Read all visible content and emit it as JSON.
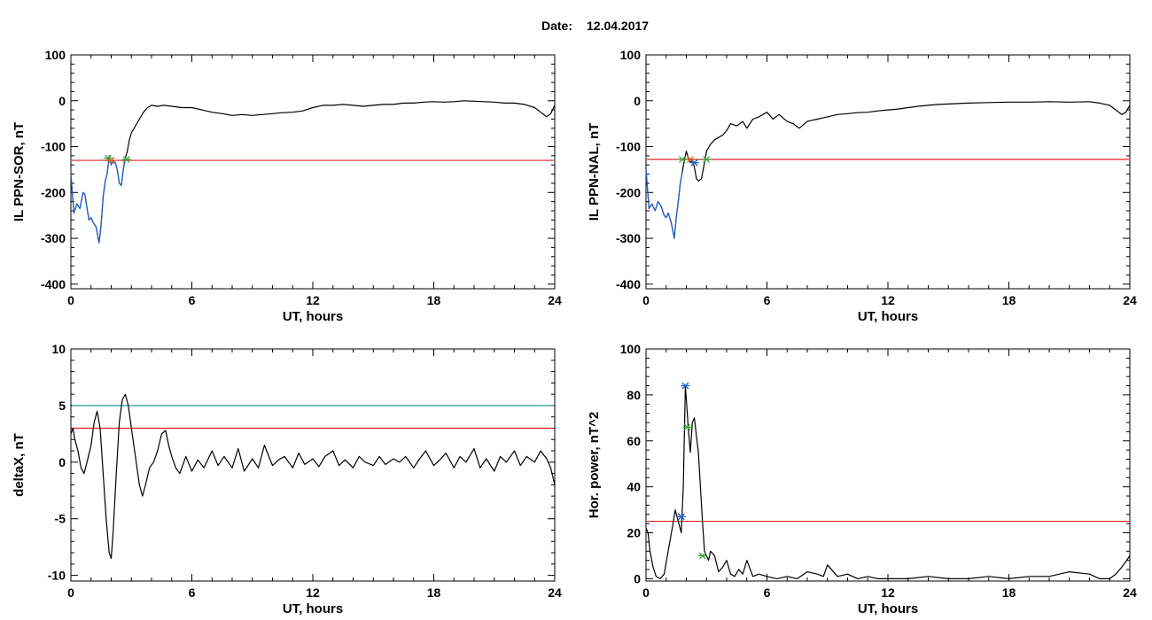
{
  "figure": {
    "date_label": "Date:",
    "date_value": "12.04.2017"
  },
  "chart_data": [
    {
      "id": "sor",
      "type": "line",
      "xlabel": "UT, hours",
      "ylabel": "IL PPN-SOR, nT",
      "xlim": [
        0,
        24
      ],
      "ylim": [
        -410,
        100
      ],
      "xticks": [
        0,
        6,
        12,
        18,
        24
      ],
      "yticks": [
        -400,
        -300,
        -200,
        -100,
        0,
        100
      ],
      "series": [
        {
          "color": "#000000",
          "x": [
            0,
            0.15,
            0.3,
            0.45,
            0.6,
            0.7,
            0.8,
            0.9,
            1.0,
            1.1,
            1.25,
            1.4,
            1.5,
            1.6,
            1.7,
            1.8,
            1.9,
            2.0,
            2.1,
            2.2,
            2.3,
            2.4,
            2.5,
            2.6,
            2.7,
            2.8,
            2.9,
            3.0,
            3.2,
            3.4,
            3.6,
            3.8,
            4.0,
            4.3,
            4.6,
            5.0,
            5.5,
            6.0,
            6.5,
            7.0,
            7.5,
            8.0,
            8.5,
            9.0,
            9.5,
            10.0,
            10.5,
            11.0,
            11.5,
            12.0,
            12.5,
            13.0,
            13.5,
            14.0,
            14.5,
            15.0,
            15.5,
            16.0,
            16.5,
            17.0,
            17.5,
            18.0,
            18.5,
            19.0,
            19.5,
            20.0,
            20.5,
            21.0,
            21.5,
            22.0,
            22.5,
            23.0,
            23.3,
            23.6,
            23.8,
            24.0
          ],
          "y": [
            -160,
            -245,
            -225,
            -235,
            -200,
            -205,
            -235,
            -260,
            -255,
            -265,
            -275,
            -310,
            -270,
            -210,
            -175,
            -160,
            -120,
            -140,
            -130,
            -135,
            -150,
            -180,
            -185,
            -150,
            -125,
            -110,
            -85,
            -70,
            -55,
            -40,
            -25,
            -15,
            -10,
            -12,
            -10,
            -12,
            -15,
            -15,
            -20,
            -25,
            -28,
            -32,
            -30,
            -32,
            -30,
            -28,
            -26,
            -25,
            -22,
            -15,
            -10,
            -10,
            -8,
            -10,
            -12,
            -10,
            -8,
            -8,
            -5,
            -5,
            -3,
            -2,
            -3,
            -2,
            0,
            -1,
            -2,
            -3,
            -5,
            -5,
            -8,
            -15,
            -25,
            -35,
            -28,
            -10
          ]
        },
        {
          "color": "#1f5fcf",
          "x": [
            0,
            0.15,
            0.3,
            0.45,
            0.6,
            0.7,
            0.8,
            0.9,
            1.0,
            1.1,
            1.25,
            1.4,
            1.5,
            1.6,
            1.7,
            1.8,
            1.9,
            2.0,
            2.1,
            2.2,
            2.3,
            2.4,
            2.5,
            2.6,
            2.7
          ],
          "y": [
            -160,
            -245,
            -225,
            -235,
            -200,
            -205,
            -235,
            -260,
            -255,
            -265,
            -275,
            -310,
            -270,
            -210,
            -175,
            -160,
            -120,
            -140,
            -130,
            -135,
            -150,
            -180,
            -185,
            -150,
            -125
          ]
        }
      ],
      "hlines": [
        {
          "y": -130,
          "color": "#e02020"
        }
      ],
      "markers": [
        {
          "x": 1.85,
          "y": -125,
          "color": "#3aa83a"
        },
        {
          "x": 2.0,
          "y": -130,
          "color": "#e05a1a"
        },
        {
          "x": 2.75,
          "y": -128,
          "color": "#3aa83a"
        }
      ]
    },
    {
      "id": "nal",
      "type": "line",
      "xlabel": "UT, hours",
      "ylabel": "IL PPN-NAL, nT",
      "xlim": [
        0,
        24
      ],
      "ylim": [
        -410,
        100
      ],
      "xticks": [
        0,
        6,
        12,
        18,
        24
      ],
      "yticks": [
        -400,
        -300,
        -200,
        -100,
        0,
        100
      ],
      "series": [
        {
          "color": "#000000",
          "x": [
            0,
            0.15,
            0.3,
            0.45,
            0.6,
            0.75,
            0.9,
            1.0,
            1.1,
            1.25,
            1.4,
            1.5,
            1.6,
            1.7,
            1.8,
            1.9,
            2.0,
            2.1,
            2.2,
            2.3,
            2.4,
            2.5,
            2.6,
            2.75,
            2.9,
            3.0,
            3.2,
            3.4,
            3.6,
            3.8,
            4.0,
            4.2,
            4.5,
            4.8,
            5.0,
            5.3,
            5.6,
            6.0,
            6.3,
            6.6,
            7.0,
            7.3,
            7.6,
            8.0,
            8.5,
            9.0,
            9.5,
            10.0,
            10.5,
            11.0,
            11.5,
            12.0,
            12.5,
            13.0,
            13.5,
            14.0,
            14.5,
            15.0,
            16.0,
            17.0,
            18.0,
            19.0,
            20.0,
            21.0,
            22.0,
            22.5,
            23.0,
            23.3,
            23.6,
            23.8,
            24.0
          ],
          "y": [
            -150,
            -235,
            -225,
            -240,
            -220,
            -230,
            -250,
            -255,
            -245,
            -265,
            -300,
            -255,
            -220,
            -180,
            -155,
            -130,
            -110,
            -125,
            -135,
            -130,
            -145,
            -170,
            -175,
            -170,
            -135,
            -110,
            -95,
            -85,
            -80,
            -75,
            -65,
            -50,
            -55,
            -45,
            -60,
            -40,
            -35,
            -25,
            -40,
            -30,
            -45,
            -50,
            -60,
            -45,
            -40,
            -35,
            -30,
            -28,
            -26,
            -25,
            -22,
            -20,
            -18,
            -15,
            -12,
            -10,
            -8,
            -7,
            -5,
            -4,
            -3,
            -3,
            -2,
            -3,
            -2,
            -5,
            -10,
            -20,
            -30,
            -25,
            -10
          ]
        },
        {
          "color": "#1f5fcf",
          "x": [
            0,
            0.15,
            0.3,
            0.45,
            0.6,
            0.75,
            0.9,
            1.0,
            1.1,
            1.25,
            1.4,
            1.5,
            1.6,
            1.7,
            1.8
          ],
          "y": [
            -150,
            -235,
            -225,
            -240,
            -220,
            -230,
            -250,
            -255,
            -245,
            -265,
            -300,
            -255,
            -220,
            -180,
            -155
          ]
        }
      ],
      "hlines": [
        {
          "y": -128,
          "color": "#e02020"
        }
      ],
      "markers": [
        {
          "x": 1.8,
          "y": -128,
          "color": "#3aa83a"
        },
        {
          "x": 2.2,
          "y": -128,
          "color": "#e05a1a"
        },
        {
          "x": 2.4,
          "y": -135,
          "color": "#1f5fcf"
        },
        {
          "x": 3.0,
          "y": -128,
          "color": "#3aa83a"
        }
      ]
    },
    {
      "id": "deltax",
      "type": "line",
      "xlabel": "UT, hours",
      "ylabel": "deltaX, nT",
      "xlim": [
        0,
        24
      ],
      "ylim": [
        -10.5,
        10
      ],
      "xticks": [
        0,
        6,
        12,
        18,
        24
      ],
      "yticks": [
        -10,
        -5,
        0,
        5,
        10
      ],
      "series": [
        {
          "color": "#000000",
          "x": [
            0,
            0.1,
            0.2,
            0.35,
            0.5,
            0.65,
            0.8,
            1.0,
            1.15,
            1.3,
            1.45,
            1.6,
            1.75,
            1.9,
            2.0,
            2.1,
            2.25,
            2.4,
            2.55,
            2.7,
            2.85,
            3.0,
            3.2,
            3.4,
            3.55,
            3.7,
            3.9,
            4.1,
            4.3,
            4.5,
            4.7,
            4.85,
            5.0,
            5.2,
            5.4,
            5.7,
            6.0,
            6.3,
            6.6,
            7.0,
            7.3,
            7.6,
            8.0,
            8.3,
            8.6,
            9.0,
            9.3,
            9.6,
            10.0,
            10.3,
            10.6,
            11.0,
            11.3,
            11.6,
            12.0,
            12.3,
            12.6,
            13.0,
            13.3,
            13.6,
            14.0,
            14.3,
            14.6,
            15.0,
            15.3,
            15.6,
            16.0,
            16.3,
            16.6,
            17.0,
            17.3,
            17.6,
            18.0,
            18.3,
            18.6,
            19.0,
            19.3,
            19.6,
            20.0,
            20.3,
            20.6,
            21.0,
            21.3,
            21.6,
            22.0,
            22.3,
            22.6,
            23.0,
            23.3,
            23.6,
            23.8,
            24.0
          ],
          "y": [
            2.5,
            3.0,
            2.0,
            1.0,
            -0.5,
            -1.0,
            0.0,
            1.5,
            3.5,
            4.5,
            3.0,
            -1.0,
            -5.0,
            -8.0,
            -8.5,
            -6.0,
            -1.0,
            3.5,
            5.5,
            6.0,
            5.0,
            3.0,
            0.5,
            -2.0,
            -3.0,
            -2.0,
            -0.5,
            0.0,
            1.0,
            2.5,
            2.8,
            1.5,
            0.5,
            -0.5,
            -1.0,
            0.5,
            -0.8,
            0.2,
            -0.5,
            1.0,
            -0.3,
            0.5,
            -0.5,
            1.2,
            -0.8,
            0.3,
            -0.5,
            1.5,
            -0.3,
            0.2,
            0.5,
            -0.5,
            0.8,
            -0.2,
            0.3,
            -0.4,
            0.5,
            1.0,
            -0.3,
            0.2,
            -0.5,
            0.5,
            0.0,
            -0.3,
            0.5,
            -0.2,
            0.3,
            0.0,
            0.5,
            -0.5,
            0.3,
            1.0,
            -0.3,
            0.2,
            0.8,
            -0.5,
            0.5,
            0.0,
            1.2,
            -0.5,
            0.3,
            -0.8,
            0.5,
            0.0,
            1.0,
            -0.3,
            0.5,
            0.0,
            1.0,
            0.3,
            -0.5,
            -2.0
          ]
        }
      ],
      "hlines": [
        {
          "y": 5,
          "color": "#2a9a9a"
        },
        {
          "y": 3,
          "color": "#e02020"
        }
      ],
      "markers": []
    },
    {
      "id": "power",
      "type": "line",
      "xlabel": "UT, hours",
      "ylabel": "Hor. power, nT^2",
      "xlim": [
        0,
        24
      ],
      "ylim": [
        -1,
        100
      ],
      "xticks": [
        0,
        6,
        12,
        18,
        24
      ],
      "yticks": [
        0,
        20,
        40,
        60,
        80,
        100
      ],
      "series": [
        {
          "color": "#000000",
          "x": [
            0,
            0.1,
            0.2,
            0.35,
            0.5,
            0.7,
            0.9,
            1.1,
            1.3,
            1.45,
            1.6,
            1.75,
            1.85,
            1.95,
            2.0,
            2.1,
            2.2,
            2.3,
            2.4,
            2.5,
            2.6,
            2.7,
            2.8,
            2.9,
            3.0,
            3.1,
            3.2,
            3.4,
            3.6,
            3.8,
            4.0,
            4.2,
            4.4,
            4.6,
            4.8,
            5.0,
            5.3,
            5.6,
            6.0,
            6.5,
            7.0,
            7.5,
            8.0,
            8.5,
            8.8,
            9.0,
            9.5,
            10.0,
            10.5,
            11.0,
            11.5,
            12.0,
            13.0,
            14.0,
            15.0,
            16.0,
            17.0,
            18.0,
            19.0,
            20.0,
            21.0,
            22.0,
            22.5,
            23.0,
            23.3,
            23.6,
            24.0
          ],
          "y": [
            22,
            20,
            12,
            5,
            1,
            0,
            2,
            12,
            22,
            30,
            25,
            20,
            40,
            84,
            78,
            65,
            55,
            68,
            70,
            62,
            55,
            40,
            25,
            12,
            10,
            8,
            12,
            10,
            3,
            5,
            8,
            2,
            1,
            4,
            2,
            8,
            1,
            2,
            1,
            0,
            1,
            0,
            3,
            2,
            1,
            6,
            1,
            2,
            0,
            1,
            0,
            0,
            0,
            1,
            0,
            0,
            1,
            0,
            1,
            1,
            3,
            2,
            0,
            0,
            2,
            5,
            10
          ]
        }
      ],
      "hlines": [
        {
          "y": 25,
          "color": "#e02020"
        }
      ],
      "markers": [
        {
          "x": 1.95,
          "y": 84,
          "color": "#1f5fcf"
        },
        {
          "x": 1.75,
          "y": 27,
          "color": "#1f5fcf"
        },
        {
          "x": 2.05,
          "y": 66,
          "color": "#3aa83a"
        },
        {
          "x": 2.8,
          "y": 10,
          "color": "#3aa83a"
        }
      ]
    }
  ]
}
